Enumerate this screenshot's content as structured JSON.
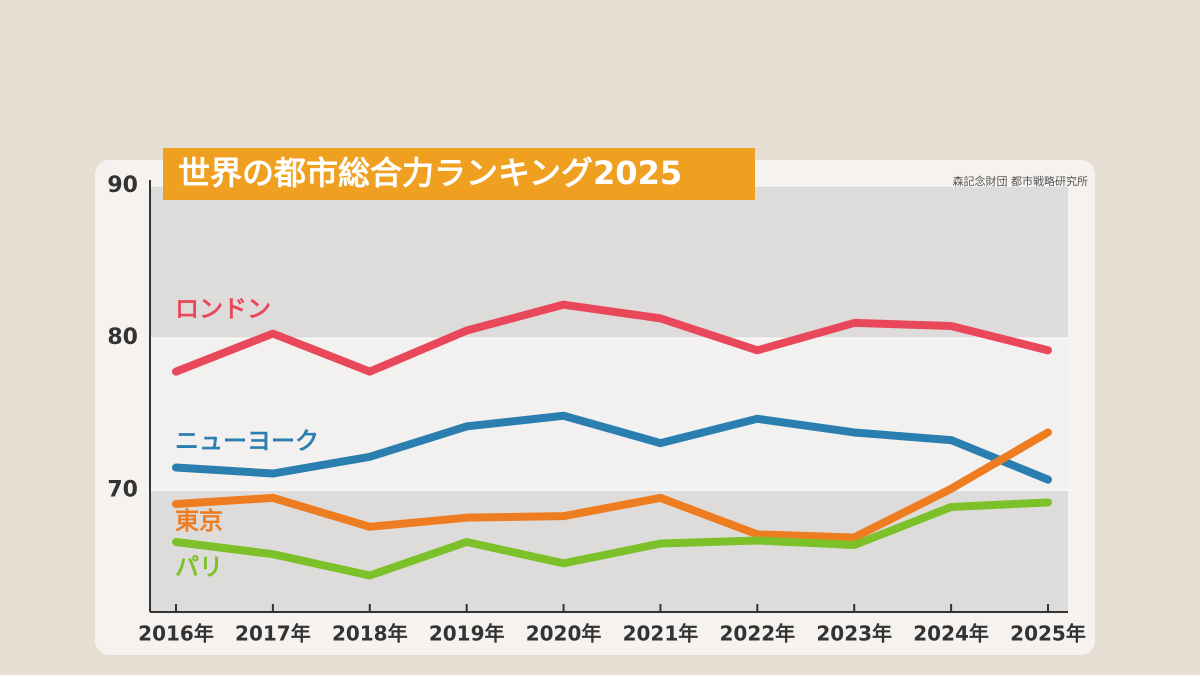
{
  "chart_data": {
    "type": "line",
    "title": "世界の都市総合力ランキング2025",
    "source": "森記念財団 都市戦略研究所",
    "categories": [
      "2016年",
      "2017年",
      "2018年",
      "2019年",
      "2020年",
      "2021年",
      "2022年",
      "2023年",
      "2024年",
      "2025年"
    ],
    "series": [
      {
        "name": "ロンドン",
        "color": "#e8485a",
        "values": [
          77.8,
          80.3,
          77.8,
          80.5,
          82.2,
          81.3,
          79.2,
          81.0,
          80.8,
          79.2
        ]
      },
      {
        "name": "ニューヨーク",
        "color": "#2b7fb0",
        "values": [
          71.5,
          71.1,
          72.2,
          74.2,
          74.9,
          73.1,
          74.7,
          73.8,
          73.3,
          70.7
        ]
      },
      {
        "name": "東京",
        "color": "#ee7d22",
        "values": [
          69.1,
          69.5,
          67.6,
          68.2,
          68.3,
          69.5,
          67.1,
          66.9,
          70.1,
          73.8
        ]
      },
      {
        "name": "パリ",
        "color": "#7cc12a",
        "values": [
          66.6,
          65.8,
          64.4,
          66.6,
          65.2,
          66.5,
          66.7,
          66.4,
          68.9,
          69.2
        ]
      }
    ],
    "ylim": [
      62,
      90
    ],
    "yticks": [
      70,
      80,
      90
    ]
  }
}
